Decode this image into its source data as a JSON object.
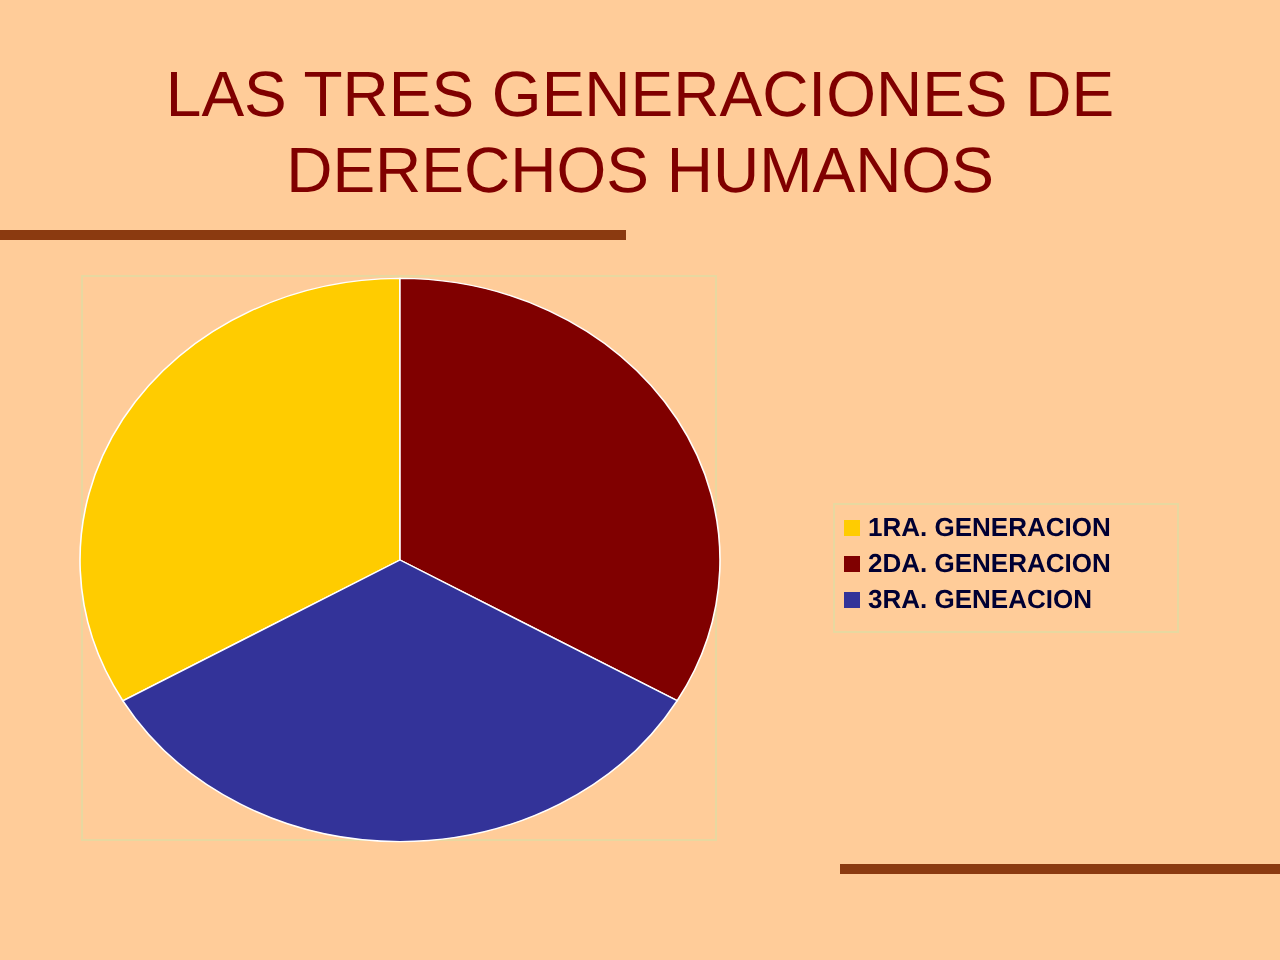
{
  "chart_data": {
    "type": "pie",
    "title": "LAS TRES GENERACIONES DE\nDERECHOS HUMANOS",
    "categories": [
      "1RA. GENERACION",
      "2DA. GENERACION",
      "3RA. GENEACION"
    ],
    "values": [
      33.33,
      33.33,
      33.34
    ],
    "colors": [
      "#ffcc00",
      "#800000",
      "#333399"
    ],
    "legend": "right"
  }
}
